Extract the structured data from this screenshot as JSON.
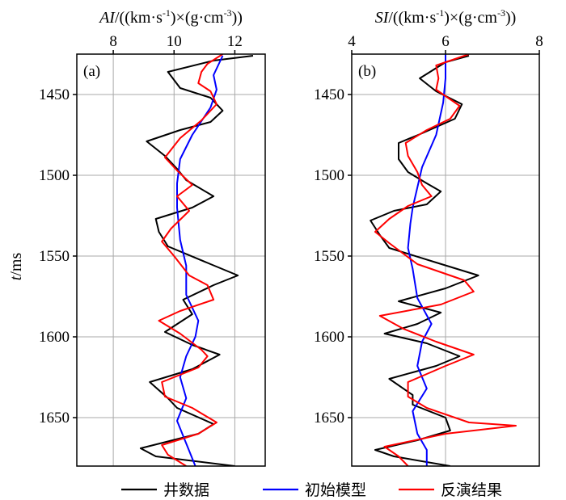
{
  "chart_data": {
    "type": "line",
    "shared_y": {
      "label_italic": "t",
      "label_rest": "/ms",
      "range": [
        1425,
        1680
      ],
      "ticks": [
        1450,
        1500,
        1550,
        1600,
        1650
      ],
      "inverted": true
    },
    "panels": [
      {
        "panel_label": "(a)",
        "x_title": {
          "italic": "AI",
          "p1": "/((km·s",
          "sup1": "-1",
          "p2": ")×(g·cm",
          "sup2": "-3",
          "p3": "))"
        },
        "xlim": [
          6.8,
          13.0
        ],
        "xticks": [
          8,
          10,
          12
        ],
        "series": [
          {
            "id": "well",
            "color": "#000000",
            "points": [
              [
                12.6,
                1426
              ],
              [
                11.3,
                1429
              ],
              [
                9.8,
                1436
              ],
              [
                10.2,
                1446
              ],
              [
                11.2,
                1452
              ],
              [
                11.6,
                1460
              ],
              [
                11.2,
                1467
              ],
              [
                10.2,
                1472
              ],
              [
                9.1,
                1479
              ],
              [
                9.7,
                1488
              ],
              [
                10.1,
                1496
              ],
              [
                10.4,
                1503
              ],
              [
                11.3,
                1513
              ],
              [
                10.6,
                1520
              ],
              [
                9.4,
                1527
              ],
              [
                9.5,
                1535
              ],
              [
                9.8,
                1544
              ],
              [
                11.2,
                1555
              ],
              [
                12.1,
                1562
              ],
              [
                11.3,
                1568
              ],
              [
                10.3,
                1577
              ],
              [
                10.6,
                1586
              ],
              [
                9.7,
                1597
              ],
              [
                10.6,
                1605
              ],
              [
                11.5,
                1611
              ],
              [
                10.6,
                1620
              ],
              [
                9.2,
                1628
              ],
              [
                9.8,
                1638
              ],
              [
                10.1,
                1644
              ],
              [
                11.3,
                1654
              ],
              [
                10.8,
                1660
              ],
              [
                8.9,
                1669
              ],
              [
                9.4,
                1674
              ],
              [
                12.0,
                1680
              ]
            ]
          },
          {
            "id": "initial",
            "color": "#0000ff",
            "points": [
              [
                11.6,
                1426
              ],
              [
                11.3,
                1438
              ],
              [
                11.4,
                1447
              ],
              [
                11.2,
                1458
              ],
              [
                10.6,
                1475
              ],
              [
                10.2,
                1490
              ],
              [
                10.1,
                1505
              ],
              [
                10.1,
                1520
              ],
              [
                10.2,
                1540
              ],
              [
                10.4,
                1556
              ],
              [
                10.4,
                1566
              ],
              [
                10.4,
                1574
              ],
              [
                10.6,
                1582
              ],
              [
                10.8,
                1590
              ],
              [
                10.7,
                1600
              ],
              [
                10.4,
                1612
              ],
              [
                10.2,
                1625
              ],
              [
                10.4,
                1638
              ],
              [
                10.1,
                1652
              ],
              [
                10.4,
                1666
              ],
              [
                10.7,
                1680
              ]
            ]
          },
          {
            "id": "inversion",
            "color": "#ff0000",
            "points": [
              [
                11.6,
                1425
              ],
              [
                11.1,
                1431
              ],
              [
                10.9,
                1436
              ],
              [
                10.8,
                1443
              ],
              [
                11.2,
                1448
              ],
              [
                11.4,
                1456
              ],
              [
                10.9,
                1466
              ],
              [
                10.2,
                1477
              ],
              [
                9.7,
                1489
              ],
              [
                10.1,
                1497
              ],
              [
                10.6,
                1506
              ],
              [
                10.1,
                1513
              ],
              [
                10.5,
                1522
              ],
              [
                9.9,
                1533
              ],
              [
                9.6,
                1541
              ],
              [
                10.0,
                1550
              ],
              [
                10.5,
                1562
              ],
              [
                11.1,
                1568
              ],
              [
                11.3,
                1577
              ],
              [
                10.2,
                1584
              ],
              [
                9.5,
                1590
              ],
              [
                10.2,
                1598
              ],
              [
                10.9,
                1608
              ],
              [
                11.1,
                1612
              ],
              [
                10.8,
                1619
              ],
              [
                9.6,
                1628
              ],
              [
                9.7,
                1637
              ],
              [
                10.6,
                1644
              ],
              [
                11.4,
                1653
              ],
              [
                10.8,
                1660
              ],
              [
                9.6,
                1667
              ],
              [
                9.8,
                1673
              ],
              [
                10.4,
                1680
              ]
            ]
          }
        ]
      },
      {
        "panel_label": "(b)",
        "x_title": {
          "italic": "SI",
          "p1": "/((km·s",
          "sup1": "-1",
          "p2": ")×(g·cm",
          "sup2": "-3",
          "p3": "))"
        },
        "xlim": [
          4.0,
          8.0
        ],
        "xticks": [
          4,
          6,
          8
        ],
        "series": [
          {
            "id": "well",
            "color": "#000000",
            "points": [
              [
                6.5,
                1426
              ],
              [
                6.0,
                1430
              ],
              [
                5.45,
                1440
              ],
              [
                5.8,
                1448
              ],
              [
                6.35,
                1456
              ],
              [
                6.2,
                1465
              ],
              [
                5.5,
                1474
              ],
              [
                5.0,
                1480
              ],
              [
                5.0,
                1490
              ],
              [
                5.2,
                1498
              ],
              [
                5.6,
                1505
              ],
              [
                5.9,
                1510
              ],
              [
                5.6,
                1518
              ],
              [
                4.9,
                1522
              ],
              [
                4.4,
                1528
              ],
              [
                4.6,
                1537
              ],
              [
                4.8,
                1545
              ],
              [
                5.8,
                1554
              ],
              [
                6.7,
                1562
              ],
              [
                6.0,
                1570
              ],
              [
                5.0,
                1578
              ],
              [
                5.9,
                1585
              ],
              [
                5.4,
                1592
              ],
              [
                4.7,
                1598
              ],
              [
                5.6,
                1604
              ],
              [
                6.3,
                1612
              ],
              [
                5.8,
                1618
              ],
              [
                4.8,
                1626
              ],
              [
                5.3,
                1636
              ],
              [
                5.3,
                1642
              ],
              [
                6.0,
                1650
              ],
              [
                6.1,
                1658
              ],
              [
                5.4,
                1664
              ],
              [
                4.5,
                1670
              ],
              [
                4.9,
                1674
              ],
              [
                6.1,
                1680
              ]
            ]
          },
          {
            "id": "initial",
            "color": "#0000ff",
            "points": [
              [
                6.0,
                1425
              ],
              [
                6.0,
                1440
              ],
              [
                5.95,
                1455
              ],
              [
                5.8,
                1475
              ],
              [
                5.5,
                1495
              ],
              [
                5.3,
                1520
              ],
              [
                5.25,
                1530
              ],
              [
                5.2,
                1545
              ],
              [
                5.3,
                1558
              ],
              [
                5.4,
                1576
              ],
              [
                5.7,
                1592
              ],
              [
                5.5,
                1603
              ],
              [
                5.4,
                1618
              ],
              [
                5.6,
                1632
              ],
              [
                5.3,
                1646
              ],
              [
                5.4,
                1660
              ],
              [
                5.6,
                1670
              ],
              [
                5.6,
                1680
              ]
            ]
          },
          {
            "id": "inversion",
            "color": "#ff0000",
            "points": [
              [
                6.5,
                1425
              ],
              [
                5.8,
                1432
              ],
              [
                5.85,
                1440
              ],
              [
                5.8,
                1447
              ],
              [
                6.3,
                1457
              ],
              [
                6.1,
                1465
              ],
              [
                5.6,
                1472
              ],
              [
                5.15,
                1480
              ],
              [
                5.2,
                1488
              ],
              [
                5.4,
                1498
              ],
              [
                5.5,
                1506
              ],
              [
                5.7,
                1513
              ],
              [
                5.2,
                1519
              ],
              [
                4.8,
                1527
              ],
              [
                4.5,
                1535
              ],
              [
                4.8,
                1542
              ],
              [
                5.4,
                1555
              ],
              [
                6.4,
                1565
              ],
              [
                6.6,
                1572
              ],
              [
                5.9,
                1580
              ],
              [
                4.6,
                1587
              ],
              [
                5.1,
                1595
              ],
              [
                5.8,
                1603
              ],
              [
                6.6,
                1611
              ],
              [
                6.0,
                1618
              ],
              [
                5.2,
                1628
              ],
              [
                5.2,
                1637
              ],
              [
                5.6,
                1644
              ],
              [
                6.5,
                1653
              ],
              [
                7.5,
                1655
              ],
              [
                6.0,
                1660
              ],
              [
                4.7,
                1668
              ],
              [
                5.0,
                1674
              ],
              [
                5.2,
                1680
              ]
            ]
          }
        ]
      }
    ],
    "legend": {
      "placement": "bottom",
      "entries": [
        {
          "id": "well",
          "label": "井数据",
          "color": "#000000"
        },
        {
          "id": "initial",
          "label": "初始模型",
          "color": "#0000ff"
        },
        {
          "id": "inversion",
          "label": "反演结果",
          "color": "#ff0000"
        }
      ]
    },
    "grid": true
  }
}
